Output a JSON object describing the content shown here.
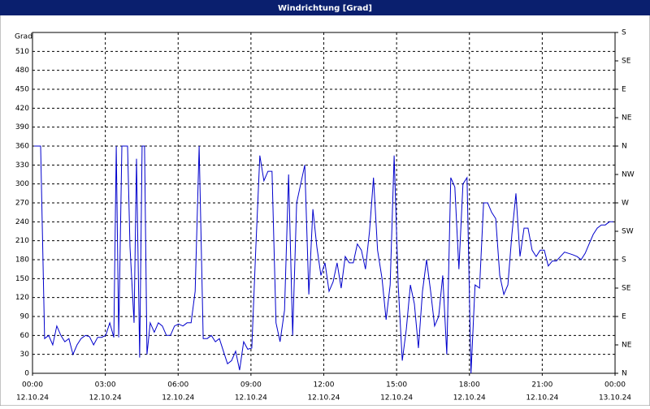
{
  "chart_data": {
    "type": "line",
    "title": "Windrichtung [Grad]",
    "ylabel": "Grad",
    "color": "#0000cc",
    "grid": true,
    "xlim": [
      0,
      1440
    ],
    "xticks": [
      {
        "value": 0,
        "label": "00:00"
      },
      {
        "value": 180,
        "label": "03:00"
      },
      {
        "value": 360,
        "label": "06:00"
      },
      {
        "value": 540,
        "label": "09:00"
      },
      {
        "value": 720,
        "label": "12:00"
      },
      {
        "value": 900,
        "label": "15:00"
      },
      {
        "value": 1080,
        "label": "18:00"
      },
      {
        "value": 1260,
        "label": "21:00"
      },
      {
        "value": 1440,
        "label": "00:00"
      }
    ],
    "xtick_dates": [
      "12.10.24",
      "12.10.24",
      "12.10.24",
      "12.10.24",
      "12.10.24",
      "12.10.24",
      "12.10.24",
      "12.10.24",
      "13.10.24"
    ],
    "ylim": [
      0,
      540
    ],
    "yticks": [
      0,
      30,
      60,
      90,
      120,
      150,
      180,
      210,
      240,
      270,
      300,
      330,
      360,
      390,
      420,
      450,
      480,
      510
    ],
    "y2lim": [
      0,
      540
    ],
    "y2ticks": [
      {
        "value": 0,
        "label": "N"
      },
      {
        "value": 45,
        "label": "NE"
      },
      {
        "value": 90,
        "label": "E"
      },
      {
        "value": 135,
        "label": "SE"
      },
      {
        "value": 180,
        "label": "S"
      },
      {
        "value": 225,
        "label": "SW"
      },
      {
        "value": 270,
        "label": "W"
      },
      {
        "value": 315,
        "label": "NW"
      },
      {
        "value": 360,
        "label": "N"
      },
      {
        "value": 405,
        "label": "NE"
      },
      {
        "value": 450,
        "label": "E"
      },
      {
        "value": 495,
        "label": "SE"
      },
      {
        "value": 540,
        "label": "S"
      }
    ],
    "x": [
      4,
      20,
      30,
      40,
      50,
      60,
      70,
      80,
      90,
      100,
      110,
      120,
      131,
      141,
      151,
      161,
      171,
      181,
      191,
      201,
      207,
      213,
      221,
      227,
      235,
      241,
      251,
      257,
      265,
      271,
      277,
      283,
      291,
      301,
      311,
      321,
      331,
      341,
      351,
      361,
      372,
      382,
      392,
      402,
      412,
      422,
      432,
      442,
      452,
      462,
      472,
      482,
      492,
      502,
      512,
      522,
      532,
      542,
      552,
      562,
      572,
      582,
      592,
      602,
      612,
      623,
      633,
      643,
      653,
      663,
      673,
      683,
      693,
      703,
      713,
      723,
      733,
      743,
      753,
      763,
      773,
      783,
      793,
      803,
      813,
      823,
      833,
      843,
      853,
      864,
      874,
      884,
      894,
      904,
      914,
      924,
      934,
      944,
      954,
      964,
      974,
      984,
      994,
      1004,
      1014,
      1024,
      1034,
      1044,
      1054,
      1064,
      1074,
      1084,
      1094,
      1105,
      1115,
      1125,
      1135,
      1145,
      1155,
      1165,
      1175,
      1185,
      1195,
      1205,
      1215,
      1225,
      1235,
      1245,
      1255,
      1265,
      1275,
      1285,
      1295,
      1305,
      1315,
      1325,
      1335,
      1346,
      1356,
      1366,
      1376,
      1386,
      1396,
      1406,
      1416,
      1426,
      1436
    ],
    "values": [
      360,
      360,
      55,
      60,
      45,
      75,
      60,
      50,
      55,
      30,
      45,
      55,
      60,
      58,
      45,
      57,
      57,
      60,
      80,
      57,
      360,
      57,
      360,
      360,
      360,
      200,
      80,
      340,
      25,
      360,
      360,
      30,
      80,
      65,
      80,
      75,
      60,
      60,
      75,
      78,
      75,
      80,
      80,
      130,
      360,
      55,
      55,
      60,
      50,
      55,
      35,
      15,
      20,
      35,
      5,
      50,
      38,
      40,
      200,
      345,
      305,
      320,
      320,
      80,
      50,
      100,
      315,
      60,
      270,
      300,
      330,
      125,
      260,
      200,
      155,
      175,
      130,
      145,
      175,
      135,
      185,
      175,
      175,
      205,
      195,
      165,
      225,
      310,
      195,
      150,
      85,
      140,
      345,
      140,
      20,
      70,
      140,
      110,
      40,
      130,
      180,
      130,
      75,
      90,
      155,
      30,
      310,
      295,
      165,
      300,
      310,
      0,
      140,
      135,
      270,
      270,
      255,
      245,
      155,
      125,
      140,
      220,
      285,
      185,
      230,
      230,
      195,
      185,
      195,
      195,
      170,
      178,
      178,
      185,
      192,
      190,
      188,
      185,
      180,
      190,
      205,
      220,
      230,
      235,
      235,
      240,
      240
    ]
  }
}
